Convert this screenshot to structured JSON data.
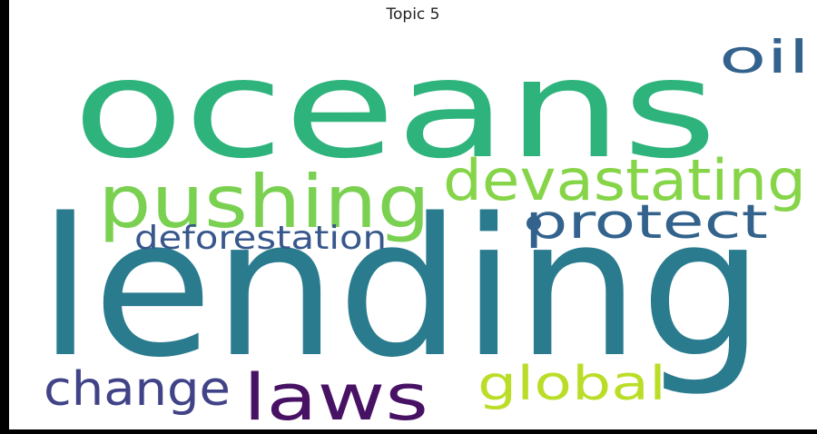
{
  "chart_data": {
    "type": "wordcloud",
    "title": "Topic 5",
    "words": [
      {
        "text": "lending",
        "color": "#2a7b8e"
      },
      {
        "text": "oceans",
        "color": "#2eb37c"
      },
      {
        "text": "pushing",
        "color": "#7ad151"
      },
      {
        "text": "devastating",
        "color": "#86d549"
      },
      {
        "text": "oil",
        "color": "#33628d"
      },
      {
        "text": "protect",
        "color": "#33638d"
      },
      {
        "text": "deforestation",
        "color": "#38588c"
      },
      {
        "text": "laws",
        "color": "#471164"
      },
      {
        "text": "change",
        "color": "#404387"
      },
      {
        "text": "global",
        "color": "#bade28"
      }
    ]
  }
}
